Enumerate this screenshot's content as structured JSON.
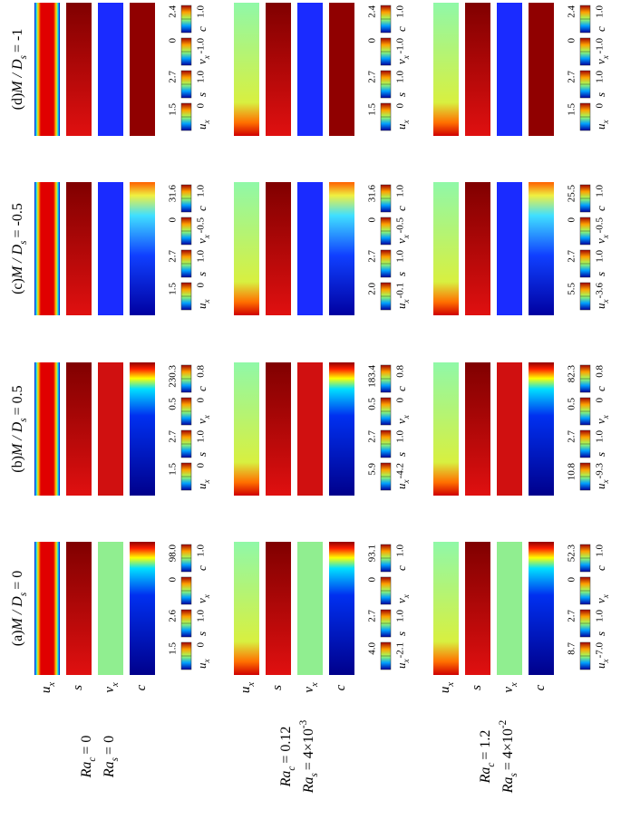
{
  "variables": [
    {
      "base": "u",
      "sub": "x"
    },
    {
      "base": "s"
    },
    {
      "base": "v",
      "sub": "x"
    },
    {
      "base": "c"
    }
  ],
  "columns": [
    {
      "tag": "(a)",
      "lhs": "M / D",
      "sub": "s",
      "rhs": "= 0"
    },
    {
      "tag": "(b)",
      "lhs": "M / D",
      "sub": "s",
      "rhs": "= 0.5"
    },
    {
      "tag": "(c)",
      "lhs": "M / D",
      "sub": "s",
      "rhs": "= -0.5"
    },
    {
      "tag": "(d)",
      "lhs": "M / D",
      "sub": "s",
      "rhs": "= -1"
    }
  ],
  "rows": [
    {
      "rac": {
        "base": "Ra",
        "sub": "c",
        "rhs": "= 0"
      },
      "ras": {
        "base": "Ra",
        "sub": "s",
        "rhs": "= 0"
      }
    },
    {
      "rac": {
        "base": "Ra",
        "sub": "c",
        "rhs": "= 0.12"
      },
      "ras": {
        "base": "Ra",
        "sub": "s",
        "rhs": "= 4×10",
        "sup": "-3"
      }
    },
    {
      "rac": {
        "base": "Ra",
        "sub": "c",
        "rhs": "= 1.2"
      },
      "ras": {
        "base": "Ra",
        "sub": "s",
        "rhs": "= 4×10",
        "sup": "-2"
      }
    }
  ],
  "colorbars": [
    [
      [
        [
          "1.5",
          "0"
        ],
        [
          "2.6",
          "1.0"
        ],
        [
          "0",
          null
        ],
        [
          "98.0",
          "1.0"
        ]
      ],
      [
        [
          "1.5",
          "0"
        ],
        [
          "2.7",
          "1.0"
        ],
        [
          "0.5",
          "0"
        ],
        [
          "230.3",
          "0.8"
        ]
      ],
      [
        [
          "1.5",
          "0"
        ],
        [
          "2.7",
          "1.0"
        ],
        [
          "0",
          "-0.5"
        ],
        [
          "31.6",
          "1.0"
        ]
      ],
      [
        [
          "1.5",
          "0"
        ],
        [
          "2.7",
          "1.0"
        ],
        [
          "0",
          "-1.0"
        ],
        [
          "2.4",
          "1.0"
        ]
      ]
    ],
    [
      [
        [
          "4.0",
          "-2.1"
        ],
        [
          "2.7",
          "1.0"
        ],
        [
          "0",
          null
        ],
        [
          "93.1",
          "1.0"
        ]
      ],
      [
        [
          "5.9",
          "-4.2"
        ],
        [
          "2.7",
          "1.0"
        ],
        [
          "0.5",
          "0"
        ],
        [
          "183.4",
          "0.8"
        ]
      ],
      [
        [
          "2.0",
          "-0.1"
        ],
        [
          "2.7",
          "1.0"
        ],
        [
          "0",
          "-0.5"
        ],
        [
          "31.6",
          "1.0"
        ]
      ],
      [
        [
          "1.5",
          "0"
        ],
        [
          "2.7",
          "1.0"
        ],
        [
          "0",
          "-1.0"
        ],
        [
          "2.4",
          "1.0"
        ]
      ]
    ],
    [
      [
        [
          "8.7",
          "-7.0"
        ],
        [
          "2.7",
          "1.0"
        ],
        [
          "0",
          null
        ],
        [
          "52.3",
          "1.0"
        ]
      ],
      [
        [
          "10.8",
          "-9.3"
        ],
        [
          "2.7",
          "1.0"
        ],
        [
          "0.5",
          "0"
        ],
        [
          "82.3",
          "0.8"
        ]
      ],
      [
        [
          "5.5",
          "-3.6"
        ],
        [
          "2.7",
          "1.0"
        ],
        [
          "0",
          "-0.5"
        ],
        [
          "25.5",
          "1.0"
        ]
      ],
      [
        [
          "1.5",
          "0"
        ],
        [
          "2.7",
          "1.0"
        ],
        [
          "0",
          "-1.0"
        ],
        [
          "2.4",
          "1.0"
        ]
      ]
    ]
  ]
}
